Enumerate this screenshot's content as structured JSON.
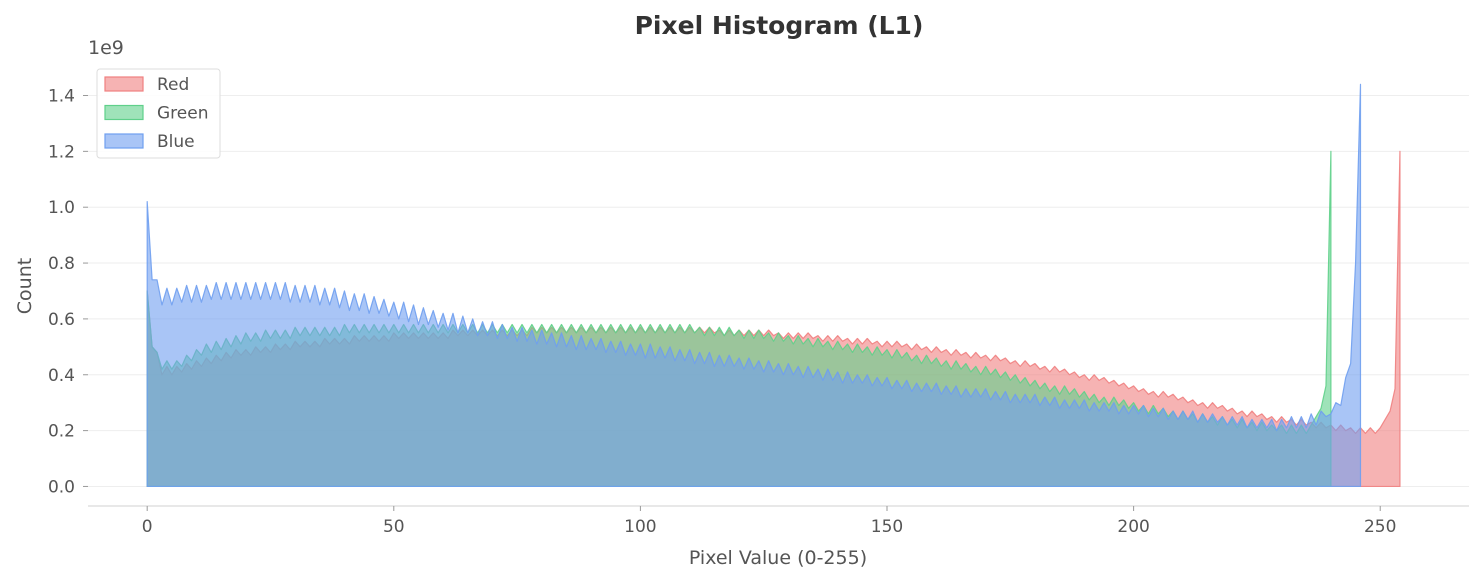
{
  "chart_data": {
    "type": "area",
    "title": "Pixel Histogram (L1)",
    "xlabel": "Pixel Value (0-255)",
    "ylabel": "Count",
    "y_multiplier_label": "1e9",
    "xlim": [
      -12,
      268
    ],
    "ylim": [
      -0.07,
      1.52
    ],
    "x_ticks": [
      0,
      50,
      100,
      150,
      200,
      250
    ],
    "y_ticks": [
      0.0,
      0.2,
      0.4,
      0.6,
      0.8,
      1.0,
      1.2,
      1.4
    ],
    "grid": "horizontal",
    "legend_position": "top-left",
    "x_start": 0,
    "x_step": 1,
    "series": [
      {
        "name": "Red",
        "color": "#f08080",
        "values": [
          0.7,
          0.5,
          0.48,
          0.4,
          0.43,
          0.4,
          0.43,
          0.41,
          0.44,
          0.42,
          0.45,
          0.43,
          0.46,
          0.44,
          0.47,
          0.45,
          0.48,
          0.46,
          0.49,
          0.47,
          0.49,
          0.47,
          0.5,
          0.48,
          0.5,
          0.48,
          0.51,
          0.49,
          0.51,
          0.49,
          0.52,
          0.5,
          0.52,
          0.5,
          0.52,
          0.5,
          0.53,
          0.51,
          0.53,
          0.51,
          0.53,
          0.51,
          0.54,
          0.52,
          0.54,
          0.52,
          0.54,
          0.52,
          0.54,
          0.52,
          0.55,
          0.53,
          0.55,
          0.53,
          0.55,
          0.53,
          0.55,
          0.53,
          0.55,
          0.53,
          0.55,
          0.53,
          0.56,
          0.54,
          0.56,
          0.54,
          0.56,
          0.54,
          0.56,
          0.54,
          0.56,
          0.54,
          0.56,
          0.54,
          0.56,
          0.54,
          0.56,
          0.54,
          0.57,
          0.55,
          0.57,
          0.55,
          0.57,
          0.55,
          0.57,
          0.55,
          0.57,
          0.55,
          0.57,
          0.55,
          0.57,
          0.55,
          0.57,
          0.55,
          0.57,
          0.55,
          0.57,
          0.55,
          0.57,
          0.55,
          0.57,
          0.55,
          0.57,
          0.55,
          0.57,
          0.55,
          0.57,
          0.55,
          0.57,
          0.55,
          0.57,
          0.55,
          0.57,
          0.55,
          0.57,
          0.55,
          0.56,
          0.54,
          0.56,
          0.54,
          0.56,
          0.54,
          0.56,
          0.54,
          0.56,
          0.54,
          0.56,
          0.54,
          0.55,
          0.53,
          0.55,
          0.53,
          0.55,
          0.53,
          0.55,
          0.53,
          0.54,
          0.52,
          0.54,
          0.52,
          0.54,
          0.52,
          0.53,
          0.51,
          0.53,
          0.51,
          0.53,
          0.51,
          0.52,
          0.5,
          0.52,
          0.5,
          0.52,
          0.5,
          0.51,
          0.49,
          0.51,
          0.49,
          0.5,
          0.48,
          0.5,
          0.48,
          0.49,
          0.47,
          0.49,
          0.47,
          0.48,
          0.46,
          0.48,
          0.46,
          0.47,
          0.45,
          0.47,
          0.45,
          0.46,
          0.44,
          0.45,
          0.43,
          0.45,
          0.43,
          0.44,
          0.42,
          0.43,
          0.41,
          0.43,
          0.41,
          0.42,
          0.4,
          0.41,
          0.39,
          0.4,
          0.38,
          0.4,
          0.38,
          0.39,
          0.37,
          0.38,
          0.36,
          0.37,
          0.35,
          0.36,
          0.34,
          0.35,
          0.33,
          0.34,
          0.32,
          0.34,
          0.32,
          0.33,
          0.31,
          0.32,
          0.3,
          0.31,
          0.29,
          0.3,
          0.28,
          0.3,
          0.28,
          0.29,
          0.27,
          0.28,
          0.26,
          0.27,
          0.25,
          0.27,
          0.25,
          0.26,
          0.24,
          0.25,
          0.23,
          0.25,
          0.23,
          0.24,
          0.22,
          0.24,
          0.22,
          0.23,
          0.21,
          0.23,
          0.21,
          0.22,
          0.2,
          0.22,
          0.2,
          0.21,
          0.19,
          0.21,
          0.19,
          0.21,
          0.19,
          0.21,
          0.24,
          0.27,
          0.35,
          1.2
        ]
      },
      {
        "name": "Green",
        "color": "#5fd08a",
        "values": [
          0.7,
          0.5,
          0.48,
          0.42,
          0.45,
          0.42,
          0.45,
          0.43,
          0.47,
          0.45,
          0.49,
          0.47,
          0.51,
          0.48,
          0.52,
          0.49,
          0.53,
          0.5,
          0.54,
          0.51,
          0.55,
          0.52,
          0.55,
          0.52,
          0.56,
          0.53,
          0.56,
          0.53,
          0.56,
          0.53,
          0.57,
          0.54,
          0.57,
          0.54,
          0.57,
          0.54,
          0.57,
          0.54,
          0.57,
          0.54,
          0.58,
          0.55,
          0.58,
          0.55,
          0.58,
          0.55,
          0.58,
          0.55,
          0.58,
          0.55,
          0.58,
          0.55,
          0.58,
          0.55,
          0.58,
          0.55,
          0.58,
          0.55,
          0.58,
          0.55,
          0.58,
          0.55,
          0.58,
          0.55,
          0.58,
          0.55,
          0.58,
          0.55,
          0.58,
          0.55,
          0.58,
          0.55,
          0.58,
          0.55,
          0.58,
          0.55,
          0.58,
          0.55,
          0.58,
          0.55,
          0.58,
          0.55,
          0.58,
          0.55,
          0.58,
          0.55,
          0.58,
          0.55,
          0.58,
          0.55,
          0.58,
          0.55,
          0.58,
          0.55,
          0.58,
          0.55,
          0.58,
          0.55,
          0.58,
          0.55,
          0.58,
          0.55,
          0.58,
          0.55,
          0.58,
          0.55,
          0.58,
          0.55,
          0.58,
          0.55,
          0.58,
          0.55,
          0.57,
          0.54,
          0.57,
          0.54,
          0.57,
          0.54,
          0.57,
          0.54,
          0.56,
          0.53,
          0.56,
          0.53,
          0.56,
          0.53,
          0.55,
          0.52,
          0.55,
          0.52,
          0.54,
          0.51,
          0.54,
          0.51,
          0.53,
          0.5,
          0.53,
          0.5,
          0.52,
          0.49,
          0.52,
          0.49,
          0.51,
          0.48,
          0.51,
          0.48,
          0.5,
          0.47,
          0.5,
          0.47,
          0.49,
          0.46,
          0.49,
          0.46,
          0.48,
          0.45,
          0.47,
          0.44,
          0.47,
          0.44,
          0.46,
          0.43,
          0.45,
          0.42,
          0.45,
          0.42,
          0.44,
          0.41,
          0.43,
          0.4,
          0.43,
          0.4,
          0.42,
          0.39,
          0.41,
          0.38,
          0.4,
          0.37,
          0.39,
          0.36,
          0.38,
          0.35,
          0.37,
          0.34,
          0.36,
          0.33,
          0.36,
          0.33,
          0.35,
          0.32,
          0.34,
          0.31,
          0.33,
          0.3,
          0.32,
          0.29,
          0.32,
          0.29,
          0.31,
          0.28,
          0.3,
          0.27,
          0.29,
          0.26,
          0.29,
          0.26,
          0.28,
          0.25,
          0.27,
          0.24,
          0.27,
          0.24,
          0.26,
          0.23,
          0.26,
          0.23,
          0.25,
          0.22,
          0.25,
          0.22,
          0.24,
          0.21,
          0.24,
          0.21,
          0.23,
          0.2,
          0.23,
          0.2,
          0.22,
          0.2,
          0.22,
          0.19,
          0.22,
          0.19,
          0.22,
          0.19,
          0.22,
          0.25,
          0.28,
          0.36,
          1.2
        ]
      },
      {
        "name": "Blue",
        "color": "#6f9ff0",
        "values": [
          1.02,
          0.74,
          0.74,
          0.65,
          0.71,
          0.65,
          0.71,
          0.66,
          0.72,
          0.66,
          0.72,
          0.66,
          0.72,
          0.67,
          0.73,
          0.67,
          0.73,
          0.67,
          0.73,
          0.67,
          0.73,
          0.67,
          0.73,
          0.67,
          0.73,
          0.67,
          0.73,
          0.67,
          0.73,
          0.66,
          0.72,
          0.66,
          0.72,
          0.66,
          0.72,
          0.65,
          0.71,
          0.65,
          0.71,
          0.64,
          0.7,
          0.63,
          0.69,
          0.63,
          0.69,
          0.62,
          0.68,
          0.62,
          0.67,
          0.61,
          0.66,
          0.6,
          0.66,
          0.59,
          0.65,
          0.58,
          0.64,
          0.58,
          0.63,
          0.57,
          0.62,
          0.56,
          0.62,
          0.55,
          0.61,
          0.55,
          0.6,
          0.54,
          0.59,
          0.54,
          0.59,
          0.53,
          0.58,
          0.53,
          0.57,
          0.52,
          0.57,
          0.52,
          0.56,
          0.51,
          0.56,
          0.51,
          0.55,
          0.5,
          0.55,
          0.5,
          0.54,
          0.49,
          0.54,
          0.49,
          0.53,
          0.49,
          0.53,
          0.48,
          0.52,
          0.48,
          0.52,
          0.47,
          0.51,
          0.47,
          0.51,
          0.46,
          0.51,
          0.46,
          0.5,
          0.46,
          0.5,
          0.45,
          0.49,
          0.45,
          0.49,
          0.44,
          0.48,
          0.44,
          0.48,
          0.43,
          0.47,
          0.43,
          0.47,
          0.43,
          0.46,
          0.42,
          0.46,
          0.42,
          0.45,
          0.41,
          0.45,
          0.41,
          0.44,
          0.4,
          0.44,
          0.4,
          0.43,
          0.39,
          0.43,
          0.39,
          0.42,
          0.38,
          0.42,
          0.38,
          0.41,
          0.37,
          0.41,
          0.37,
          0.4,
          0.37,
          0.4,
          0.36,
          0.39,
          0.36,
          0.39,
          0.35,
          0.38,
          0.35,
          0.38,
          0.34,
          0.37,
          0.34,
          0.37,
          0.34,
          0.37,
          0.33,
          0.36,
          0.33,
          0.36,
          0.32,
          0.35,
          0.32,
          0.35,
          0.32,
          0.35,
          0.31,
          0.34,
          0.31,
          0.34,
          0.3,
          0.33,
          0.3,
          0.33,
          0.3,
          0.33,
          0.29,
          0.32,
          0.29,
          0.32,
          0.28,
          0.31,
          0.28,
          0.31,
          0.28,
          0.31,
          0.27,
          0.3,
          0.27,
          0.3,
          0.27,
          0.3,
          0.26,
          0.29,
          0.26,
          0.29,
          0.26,
          0.29,
          0.25,
          0.28,
          0.25,
          0.28,
          0.24,
          0.27,
          0.24,
          0.27,
          0.24,
          0.27,
          0.23,
          0.26,
          0.23,
          0.26,
          0.23,
          0.25,
          0.22,
          0.25,
          0.22,
          0.25,
          0.21,
          0.24,
          0.21,
          0.24,
          0.21,
          0.24,
          0.2,
          0.24,
          0.21,
          0.25,
          0.21,
          0.25,
          0.21,
          0.26,
          0.22,
          0.27,
          0.25,
          0.26,
          0.3,
          0.29,
          0.39,
          0.44,
          0.8,
          1.44
        ]
      }
    ]
  }
}
